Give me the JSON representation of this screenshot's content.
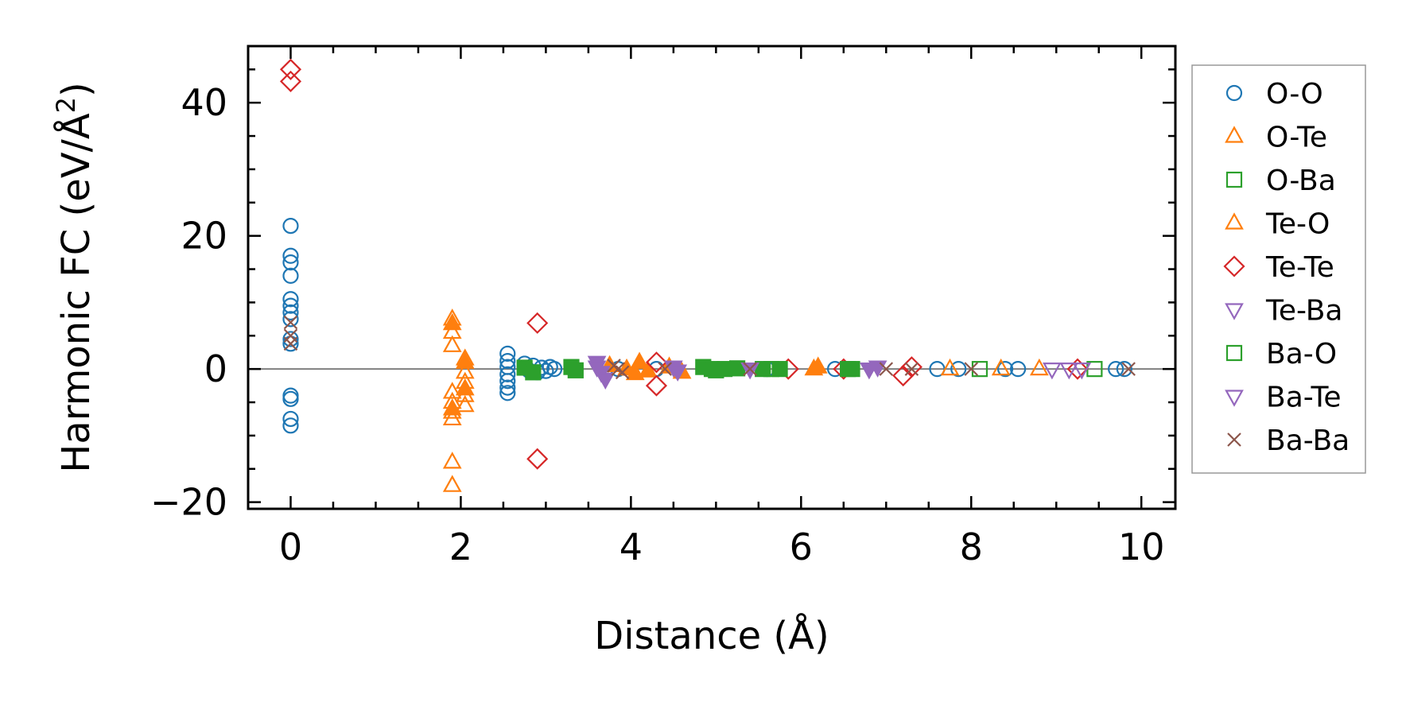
{
  "chart_data": {
    "type": "scatter",
    "title": "",
    "xlabel": "Distance (Å)",
    "ylabel": "Harmonic FC (eV/Å²)",
    "ylabel_main": "Harmonic FC (eV/Å",
    "ylabel_sup": "2",
    "ylabel_close": ")",
    "xlim": [
      -0.5,
      10.4
    ],
    "ylim": [
      -21,
      48.5
    ],
    "xticks": [
      0,
      2,
      4,
      6,
      8,
      10
    ],
    "xtick_labels": [
      "0",
      "2",
      "4",
      "6",
      "8",
      "10"
    ],
    "yticks": [
      -20,
      0,
      20,
      40
    ],
    "ytick_labels": [
      "−20",
      "0",
      "20",
      "40"
    ],
    "zero_line": true,
    "legend_position": "outside-right",
    "series": [
      {
        "name": "O-O",
        "marker": "circle",
        "color": "#1f77b4",
        "filled": false,
        "points": [
          [
            0,
            21.5
          ],
          [
            0,
            17
          ],
          [
            0,
            16
          ],
          [
            0,
            14
          ],
          [
            0,
            10.5
          ],
          [
            0,
            9.5
          ],
          [
            0,
            8.5
          ],
          [
            0,
            7.5
          ],
          [
            0,
            4.5
          ],
          [
            0,
            3.8
          ],
          [
            0,
            -4
          ],
          [
            0,
            -4.5
          ],
          [
            0,
            -7.5
          ],
          [
            0,
            -8.5
          ],
          [
            2.55,
            2.3
          ],
          [
            2.55,
            1.2
          ],
          [
            2.55,
            0.3
          ],
          [
            2.55,
            -0.8
          ],
          [
            2.55,
            -1.8
          ],
          [
            2.55,
            -2.8
          ],
          [
            2.55,
            -3.6
          ],
          [
            2.75,
            0.8
          ],
          [
            2.8,
            -0.2
          ],
          [
            2.85,
            0.5
          ],
          [
            2.9,
            -0.5
          ],
          [
            2.95,
            0.2
          ],
          [
            3.0,
            -0.3
          ],
          [
            3.05,
            0.3
          ],
          [
            3.1,
            0
          ],
          [
            3.85,
            0
          ],
          [
            4.3,
            0
          ],
          [
            5.6,
            0
          ],
          [
            6.4,
            0
          ],
          [
            7.6,
            0
          ],
          [
            7.85,
            0
          ],
          [
            8.4,
            0
          ],
          [
            8.55,
            0
          ],
          [
            9.7,
            0
          ],
          [
            9.8,
            0
          ]
        ]
      },
      {
        "name": "O-Te",
        "marker": "triangle-up",
        "color": "#ff7f0e",
        "filled": false,
        "points": [
          [
            1.9,
            7.5
          ],
          [
            1.9,
            5.5
          ],
          [
            1.9,
            3.5
          ],
          [
            1.9,
            -3.5
          ],
          [
            1.9,
            -5
          ],
          [
            1.9,
            -6.5
          ],
          [
            1.9,
            -7.5
          ],
          [
            1.9,
            -14
          ],
          [
            1.9,
            -17.5
          ],
          [
            2.05,
            1.5
          ],
          [
            2.05,
            -0.5
          ],
          [
            2.05,
            -2
          ],
          [
            2.05,
            -4
          ],
          [
            2.05,
            -5.5
          ],
          [
            7.75,
            0
          ],
          [
            8.35,
            0
          ],
          [
            8.8,
            0
          ]
        ]
      },
      {
        "name": "O-Ba",
        "marker": "square",
        "color": "#2ca02c",
        "filled": false,
        "points": [
          [
            5.65,
            0
          ],
          [
            8.1,
            0
          ],
          [
            9.45,
            0
          ]
        ]
      },
      {
        "name": "Te-O",
        "marker": "triangle-up",
        "color": "#ff7f0e",
        "filled": true,
        "points": [
          [
            1.9,
            6.8
          ],
          [
            1.9,
            -6
          ],
          [
            2.05,
            1
          ],
          [
            2.05,
            -3
          ],
          [
            3.75,
            0.5
          ],
          [
            3.95,
            0
          ],
          [
            4.05,
            -0.7
          ],
          [
            4.1,
            1
          ],
          [
            4.2,
            -0.3
          ],
          [
            4.45,
            0.3
          ],
          [
            4.6,
            -0.5
          ],
          [
            6.15,
            0
          ],
          [
            6.2,
            0.3
          ]
        ]
      },
      {
        "name": "Te-Te",
        "marker": "diamond",
        "color": "#d62728",
        "filled": false,
        "points": [
          [
            0,
            45
          ],
          [
            0,
            43.2
          ],
          [
            2.9,
            6.9
          ],
          [
            2.9,
            -13.5
          ],
          [
            4.3,
            1
          ],
          [
            4.3,
            -2.5
          ],
          [
            5.85,
            0
          ],
          [
            6.5,
            0
          ],
          [
            7.2,
            -1
          ],
          [
            7.3,
            0.3
          ],
          [
            9.25,
            0
          ]
        ]
      },
      {
        "name": "Te-Ba",
        "marker": "triangle-down",
        "color": "#9467bd",
        "filled": false,
        "points": [
          [
            8.95,
            0
          ],
          [
            9.15,
            0
          ],
          [
            9.3,
            0
          ]
        ]
      },
      {
        "name": "Ba-O",
        "marker": "square",
        "color": "#2ca02c",
        "filled": true,
        "points": [
          [
            2.75,
            0.2
          ],
          [
            2.85,
            -0.5
          ],
          [
            3.3,
            0.3
          ],
          [
            3.35,
            -0.2
          ],
          [
            4.85,
            0.3
          ],
          [
            4.95,
            0
          ],
          [
            5.0,
            -0.2
          ],
          [
            5.1,
            0
          ],
          [
            5.25,
            0.1
          ],
          [
            5.55,
            0
          ],
          [
            5.75,
            0
          ],
          [
            6.55,
            0
          ],
          [
            6.6,
            0
          ]
        ]
      },
      {
        "name": "Ba-Te",
        "marker": "triangle-down",
        "color": "#9467bd",
        "filled": true,
        "points": [
          [
            3.6,
            1
          ],
          [
            3.65,
            -0.5
          ],
          [
            3.7,
            -1.5
          ],
          [
            3.6,
            0.3
          ],
          [
            4.5,
            0.3
          ],
          [
            4.55,
            -0.3
          ],
          [
            5.4,
            0
          ],
          [
            6.8,
            0
          ],
          [
            6.9,
            0.3
          ]
        ]
      },
      {
        "name": "Ba-Ba",
        "marker": "x",
        "color": "#8c564b",
        "filled": false,
        "points": [
          [
            0,
            7
          ],
          [
            0,
            5
          ],
          [
            0,
            3.8
          ],
          [
            3.8,
            0.5
          ],
          [
            3.85,
            0
          ],
          [
            3.9,
            -0.5
          ],
          [
            4.4,
            0
          ],
          [
            5.4,
            0
          ],
          [
            7.0,
            0
          ],
          [
            7.3,
            0
          ],
          [
            8.0,
            0
          ],
          [
            9.85,
            0
          ]
        ]
      }
    ]
  }
}
